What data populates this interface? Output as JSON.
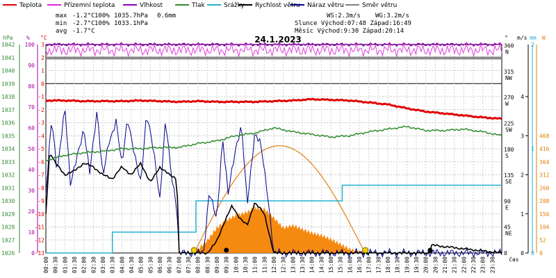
{
  "chart_data": {
    "type": "line",
    "title": "24.1.2023",
    "xlabel": "čas",
    "legend": [
      {
        "label": "Teplota",
        "color": "#e00000"
      },
      {
        "label": "Přízemní teplota",
        "color": "#e020e0"
      },
      {
        "label": "Vlhkost",
        "color": "#9000b0"
      },
      {
        "label": "Tlak",
        "color": "#2e8b2e"
      },
      {
        "label": "Srážky",
        "color": "#20b0d0"
      },
      {
        "label": "Rychlost větru",
        "color": "#000000"
      },
      {
        "label": "Náraz větru",
        "color": "#000090"
      },
      {
        "label": "Směr větru",
        "color": "#808080"
      }
    ],
    "stats": {
      "max": {
        "label": "max",
        "temp": "-1.2°C",
        "hum": "100%",
        "press": "1035.7hPa",
        "rain": "0.6mm"
      },
      "min": {
        "label": "min",
        "temp": "-2.7°C",
        "hum": "100%",
        "press": "1033.1hPa"
      },
      "avg": {
        "label": "avg",
        "temp": "-1.7°C"
      },
      "ws": "WS:2.3m/s",
      "wg": "WG:3.2m/s",
      "sun": "Slunce Východ:07:48   Západ:16:49",
      "moon": "Měsíc  Východ:9:30    Západ:20:14"
    },
    "axes": {
      "hpa": {
        "unit": "hPa",
        "color": "#2e8b2e",
        "range": [
          1026,
          1042
        ],
        "ticks": [
          "1042",
          "1041",
          "1040",
          "1039",
          "1038",
          "1037",
          "1036",
          "1035",
          "1034",
          "1033",
          "1032",
          "1031",
          "1030",
          "1029",
          "1028",
          "1027",
          "1026"
        ]
      },
      "percent": {
        "unit": "%",
        "color": "#a000a0",
        "ticks": [
          "100",
          "90",
          "80",
          "70",
          "60",
          "50",
          "40",
          "30",
          "20",
          "10",
          "0"
        ]
      },
      "temp": {
        "unit": "°C",
        "color": "#e00000",
        "range": [
          -13,
          3
        ],
        "ticks": [
          "3",
          "2",
          "1",
          "0",
          "-1",
          "-2",
          "-3",
          "-4",
          "-5",
          "-6",
          "-7",
          "-8",
          "-9",
          "-10",
          "-11",
          "-12",
          "-13"
        ]
      },
      "dir": {
        "unit": "°",
        "ticks": [
          "360",
          "315",
          "270",
          "225",
          "180",
          "135",
          "90",
          "45",
          "0"
        ],
        "names": [
          "N",
          "NW",
          "W",
          "SW",
          "S",
          "SE",
          "E",
          "NE",
          ""
        ]
      },
      "ms": {
        "unit": "m/s",
        "ticks": [
          "4",
          "3",
          "2",
          "1",
          "0"
        ]
      },
      "mm": {
        "unit": "mm",
        "color": "#20b0d0",
        "ticks": [
          "2",
          "1",
          "0"
        ]
      },
      "wm2": {
        "unit": "W",
        "color": "#e08000",
        "ticks": [
          "468",
          "416",
          "364",
          "312",
          "260",
          "208",
          "156",
          "104",
          "52",
          "0"
        ]
      }
    },
    "x_ticks": [
      "00:00",
      "00:30",
      "01:00",
      "01:30",
      "02:00",
      "02:30",
      "03:00",
      "03:30",
      "04:00",
      "04:30",
      "05:00",
      "05:30",
      "06:00",
      "06:30",
      "07:00",
      "07:30",
      "08:00",
      "08:30",
      "09:00",
      "09:30",
      "10:00",
      "10:30",
      "11:00",
      "11:30",
      "12:00",
      "12:30",
      "13:00",
      "13:30",
      "14:00",
      "14:30",
      "15:00",
      "15:30",
      "16:00",
      "16:30",
      "17:00",
      "17:30",
      "18:00",
      "18:30",
      "19:00",
      "19:30",
      "20:00",
      "20:30",
      "21:00",
      "21:30",
      "22:00",
      "22:30",
      "23:00",
      "23:30"
    ],
    "series": [
      {
        "name": "Teplota",
        "unit": "°C",
        "x": [
          0,
          1,
          2,
          3,
          4,
          5,
          6,
          7,
          8,
          9,
          10,
          11,
          12,
          13,
          14,
          15,
          16,
          17,
          18,
          19,
          20,
          21,
          22,
          23,
          24
        ],
        "values": [
          -1.3,
          -1.3,
          -1.35,
          -1.35,
          -1.35,
          -1.3,
          -1.35,
          -1.4,
          -1.35,
          -1.4,
          -1.4,
          -1.4,
          -1.35,
          -1.3,
          -1.2,
          -1.25,
          -1.3,
          -1.45,
          -1.6,
          -1.9,
          -2.15,
          -2.3,
          -2.45,
          -2.6,
          -2.7
        ]
      },
      {
        "name": "Tlak",
        "unit": "hPa",
        "x": [
          0,
          1,
          2,
          3,
          4,
          5,
          6,
          7,
          8,
          9,
          10,
          11,
          12,
          13,
          14,
          15,
          16,
          17,
          18,
          19,
          20,
          21,
          22,
          23,
          24
        ],
        "values": [
          1033.1,
          1033.5,
          1033.7,
          1033.8,
          1034.0,
          1034.0,
          1034.1,
          1034.1,
          1034.4,
          1034.6,
          1035.0,
          1035.2,
          1035.6,
          1035.3,
          1035.1,
          1034.9,
          1035.0,
          1035.3,
          1035.5,
          1035.7,
          1035.4,
          1035.4,
          1035.5,
          1035.3,
          1035.0
        ]
      },
      {
        "name": "Vlhkost",
        "unit": "%",
        "x": [
          0,
          24
        ],
        "values": [
          100,
          100
        ]
      },
      {
        "name": "Směr větru",
        "unit": "°",
        "x": [
          0,
          24
        ],
        "values": [
          360,
          360
        ]
      },
      {
        "name": "Srážky",
        "unit": "mm",
        "x": [
          0,
          3.5,
          3.5,
          7.9,
          7.9,
          15.6,
          15.6,
          24
        ],
        "values": [
          0,
          0,
          0.2,
          0.2,
          0.5,
          0.5,
          0.65,
          0.65
        ]
      },
      {
        "name": "Rychlost větru",
        "unit": "m/s",
        "x": [
          0,
          0.2,
          0.5,
          1.0,
          1.5,
          2.0,
          2.5,
          3.0,
          3.5,
          4.0,
          4.5,
          5.0,
          5.5,
          6.0,
          6.5,
          6.9,
          7.0,
          8.5,
          9.0,
          9.4,
          9.8,
          10.2,
          10.6,
          11.0,
          11.5,
          12.0,
          13.0,
          20.2,
          20.3,
          24
        ],
        "values": [
          1.0,
          2.6,
          2.3,
          2.0,
          2.1,
          2.3,
          2.2,
          2.0,
          1.9,
          2.2,
          2.0,
          2.3,
          1.8,
          2.2,
          2.0,
          1.9,
          0,
          0,
          0.3,
          0.8,
          1.2,
          0.9,
          0.7,
          1.3,
          1.0,
          0,
          0,
          0,
          0.2,
          0
        ]
      },
      {
        "name": "Náraz větru",
        "unit": "m/s",
        "x": [
          0,
          0.3,
          0.6,
          1.0,
          1.3,
          1.7,
          2.0,
          2.3,
          2.7,
          3.0,
          3.3,
          3.7,
          4.0,
          4.3,
          4.7,
          5.0,
          5.3,
          5.7,
          6.0,
          6.3,
          6.6,
          6.9,
          7.0,
          8.3,
          8.6,
          9.0,
          9.3,
          9.6,
          10.0,
          10.3,
          10.6,
          11.0,
          11.3,
          11.7,
          12.0,
          12.3,
          24
        ],
        "values": [
          1.5,
          3.5,
          2.0,
          3.8,
          1.7,
          2.6,
          3.2,
          2.0,
          3.7,
          1.9,
          2.8,
          3.4,
          2.2,
          3.5,
          2.4,
          1.8,
          3.6,
          2.5,
          1.4,
          3.4,
          2.0,
          1.2,
          0,
          0,
          1.6,
          0.8,
          3.0,
          1.5,
          2.7,
          3.3,
          1.2,
          3.1,
          2.8,
          1.4,
          0,
          0,
          0
        ]
      },
      {
        "name": "Sluneční záření",
        "unit": "W",
        "x": [
          7.8,
          8.5,
          9.0,
          9.5,
          10.0,
          10.5,
          11.0,
          11.5,
          12.0,
          12.5,
          13.0,
          13.5,
          14.0,
          14.5,
          15.0,
          15.5,
          16.0,
          16.8
        ],
        "values": [
          0,
          50,
          100,
          130,
          150,
          160,
          180,
          175,
          140,
          100,
          110,
          95,
          80,
          70,
          55,
          35,
          15,
          0
        ]
      },
      {
        "name": "Teoretické záření",
        "unit": "W",
        "x": [
          7.8,
          9,
          10,
          11,
          12,
          13,
          14,
          15,
          16,
          16.8
        ],
        "values": [
          0,
          180,
          300,
          390,
          428,
          415,
          340,
          220,
          80,
          0
        ]
      }
    ]
  }
}
